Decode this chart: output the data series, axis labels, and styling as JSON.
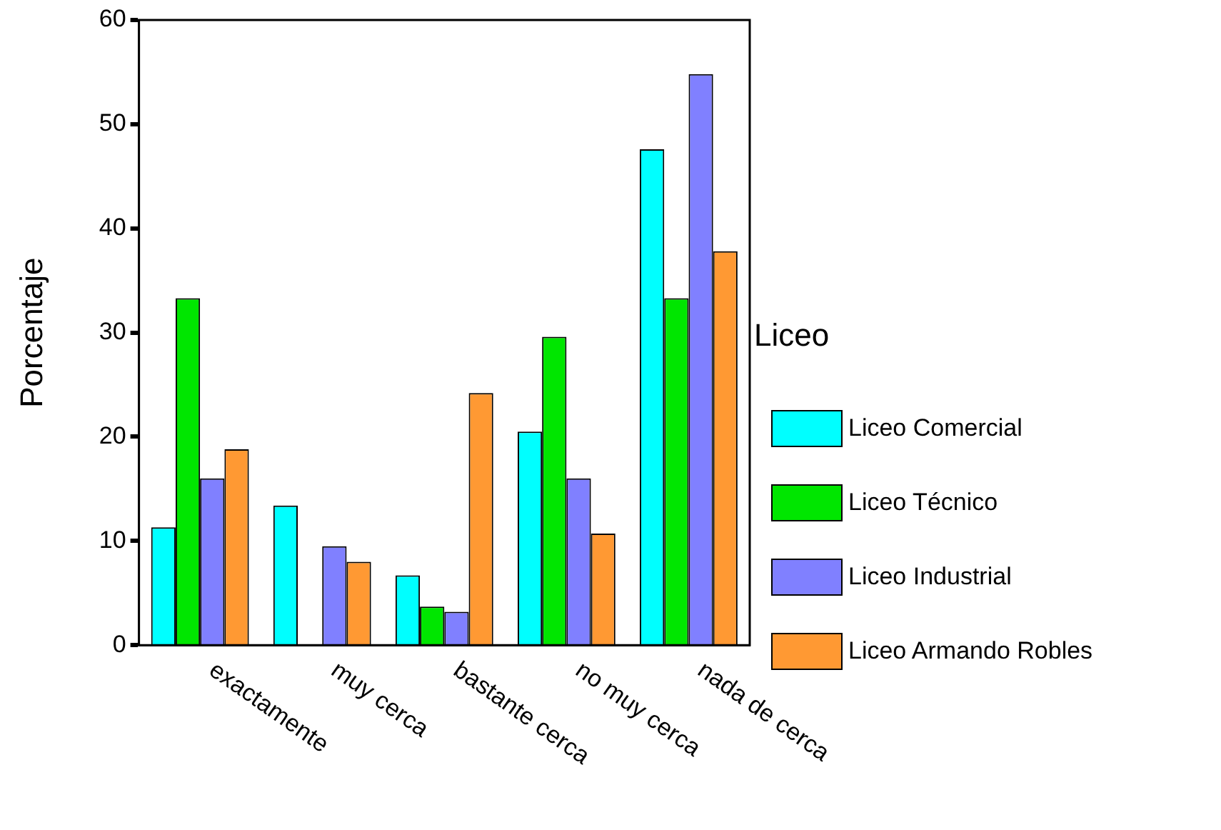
{
  "chart_data": {
    "type": "bar",
    "ylabel": "Porcentaje",
    "legend_title": "Liceo",
    "legend": "right",
    "grid": false,
    "categories": [
      "exactamente",
      "muy cerca",
      "bastante cerca",
      "no muy cerca",
      "nada de cerca"
    ],
    "ylim": [
      0,
      60
    ],
    "yticks": [
      0,
      10,
      20,
      30,
      40,
      50,
      60
    ],
    "series": [
      {
        "name": "Liceo Comercial",
        "color": "#00ffff",
        "values": [
          11.3,
          13.4,
          6.7,
          20.5,
          47.6
        ]
      },
      {
        "name": "Liceo Técnico",
        "color": "#00e600",
        "values": [
          33.3,
          0,
          3.7,
          29.6,
          33.3
        ]
      },
      {
        "name": "Liceo Industrial",
        "color": "#8080ff",
        "values": [
          16,
          9.5,
          3.2,
          16,
          54.8
        ]
      },
      {
        "name": "Liceo Armando Robles",
        "color": "#ff9933",
        "values": [
          18.8,
          8,
          24.2,
          10.7,
          37.8
        ]
      }
    ]
  }
}
